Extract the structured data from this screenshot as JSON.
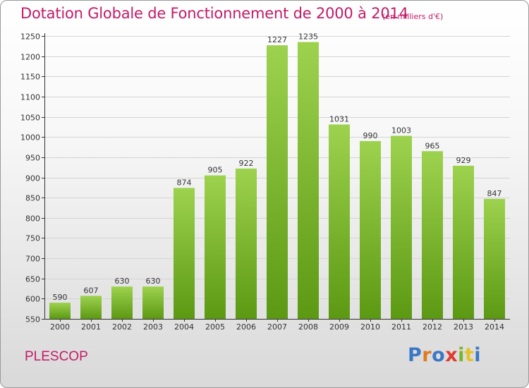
{
  "header": {
    "title": "Dotation Globale de Fonctionnement de 2000 à 2014",
    "subtitle": "(en milliers d'€)"
  },
  "footer": {
    "place": "PLESCOP",
    "logo_text": "Proxiti",
    "logo_colors": [
      "#3a77c5",
      "#e07a1f",
      "#3a77c5",
      "#e2382d",
      "#7bb52c",
      "#e5c227",
      "#3a77c5"
    ]
  },
  "colors": {
    "accent": "#c21a68",
    "bar_top": "#9dd24e",
    "bar_bottom": "#5c9913",
    "grid": "#d4d4d4",
    "axis": "#333333"
  },
  "chart_data": {
    "type": "bar",
    "title": "Dotation Globale de Fonctionnement de 2000 à 2014",
    "subtitle": "(en milliers d'€)",
    "xlabel": "",
    "ylabel": "",
    "categories": [
      "2000",
      "2001",
      "2002",
      "2003",
      "2004",
      "2005",
      "2006",
      "2007",
      "2008",
      "2009",
      "2010",
      "2011",
      "2012",
      "2013",
      "2014"
    ],
    "values": [
      590,
      607,
      630,
      630,
      874,
      905,
      922,
      1227,
      1235,
      1031,
      990,
      1003,
      965,
      929,
      847
    ],
    "ylim": [
      550,
      1250
    ],
    "yticks": [
      550,
      600,
      650,
      700,
      750,
      800,
      850,
      900,
      950,
      1000,
      1050,
      1100,
      1150,
      1200,
      1250
    ],
    "grid": true,
    "data_labels": true
  }
}
